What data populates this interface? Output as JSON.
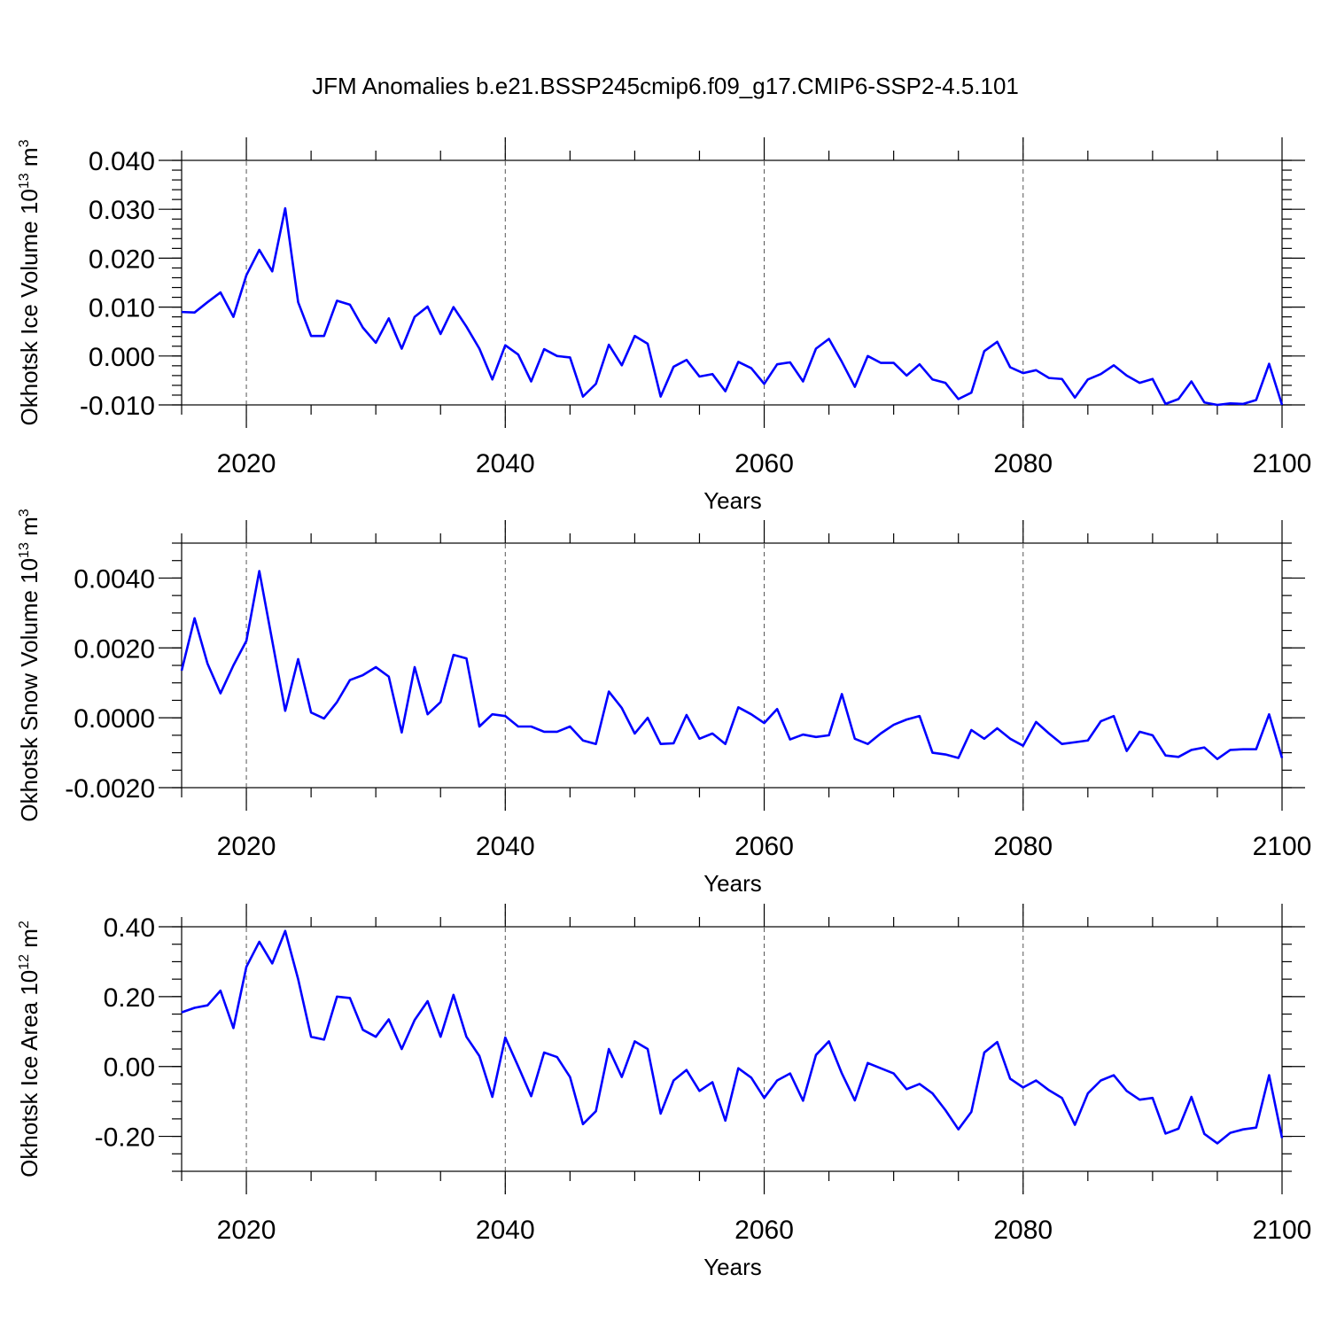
{
  "figure": {
    "title": "JFM Anomalies b.e21.BSSP245cmip6.f09_g17.CMIP6-SSP2-4.5.101"
  },
  "chart_data": [
    {
      "type": "line",
      "title": "",
      "xlabel": "Years",
      "ylabel": "Okhotsk Ice Volume 10",
      "ylabel_exp1": "13",
      "ylabel_unit": " m",
      "ylabel_exp2": "3",
      "xlim": [
        2015,
        2100
      ],
      "ylim": [
        -0.01,
        0.04
      ],
      "xticks": [
        2020,
        2040,
        2060,
        2080,
        2100
      ],
      "xtick_labels": [
        "2020",
        "2040",
        "2060",
        "2080",
        "2100"
      ],
      "yticks": [
        -0.01,
        0.0,
        0.01,
        0.02,
        0.03,
        0.04
      ],
      "ytick_labels": [
        "-0.010",
        "0.000",
        "0.010",
        "0.020",
        "0.030",
        "0.040"
      ],
      "yminor_step": 0.002,
      "grid_x": [
        2020,
        2040,
        2060,
        2080
      ],
      "series": [
        {
          "name": "Okhotsk Ice Volume",
          "color": "#0000ff",
          "x_start": 2015,
          "values": [
            0.009,
            0.0089,
            0.011,
            0.013,
            0.008,
            0.0165,
            0.0217,
            0.0173,
            0.0302,
            0.011,
            0.0041,
            0.0041,
            0.0113,
            0.0105,
            0.0058,
            0.0027,
            0.0077,
            0.0015,
            0.008,
            0.0101,
            0.0045,
            0.01,
            0.006,
            0.0015,
            -0.0048,
            0.0022,
            0.0003,
            -0.0052,
            0.0014,
            0.0,
            -0.0003,
            -0.0083,
            -0.0057,
            0.0023,
            -0.0019,
            0.0041,
            0.0025,
            -0.0083,
            -0.0022,
            -0.0008,
            -0.0042,
            -0.0037,
            -0.0072,
            -0.0012,
            -0.0025,
            -0.0057,
            -0.0017,
            -0.0013,
            -0.0052,
            0.0015,
            0.0035,
            -0.0012,
            -0.0063,
            0.0,
            -0.0014,
            -0.0014,
            -0.004,
            -0.0017,
            -0.0048,
            -0.0055,
            -0.0088,
            -0.0075,
            0.001,
            0.0029,
            -0.0023,
            -0.0035,
            -0.0029,
            -0.0045,
            -0.0047,
            -0.0085,
            -0.0048,
            -0.0037,
            -0.0019,
            -0.004,
            -0.0055,
            -0.0047,
            -0.0098,
            -0.0088,
            -0.0052,
            -0.0095,
            -0.01,
            -0.0097,
            -0.0098,
            -0.009,
            -0.0016,
            -0.01
          ]
        }
      ]
    },
    {
      "type": "line",
      "title": "",
      "xlabel": "Years",
      "ylabel": "Okhotsk Snow Volume 10",
      "ylabel_exp1": "13",
      "ylabel_unit": " m",
      "ylabel_exp2": "3",
      "xlim": [
        2015,
        2100
      ],
      "ylim": [
        -0.002,
        0.005
      ],
      "xticks": [
        2020,
        2040,
        2060,
        2080,
        2100
      ],
      "xtick_labels": [
        "2020",
        "2040",
        "2060",
        "2080",
        "2100"
      ],
      "yticks": [
        -0.002,
        0.0,
        0.002,
        0.004
      ],
      "ytick_labels": [
        "-0.0020",
        "0.0000",
        "0.0020",
        "0.0040"
      ],
      "yminor_step": 0.0005,
      "grid_x": [
        2020,
        2040,
        2060,
        2080
      ],
      "series": [
        {
          "name": "Okhotsk Snow Volume",
          "color": "#0000ff",
          "x_start": 2015,
          "values": [
            0.00135,
            0.00285,
            0.00155,
            0.0007,
            0.0015,
            0.0022,
            0.0042,
            0.0022,
            0.0002,
            0.00168,
            0.00015,
            -2e-05,
            0.00045,
            0.00108,
            0.00122,
            0.00145,
            0.00118,
            -0.00042,
            0.00145,
            0.0001,
            0.00045,
            0.0018,
            0.0017,
            -0.00025,
            0.0001,
            5e-05,
            -0.00025,
            -0.00025,
            -0.0004,
            -0.0004,
            -0.00025,
            -0.00065,
            -0.00075,
            0.00075,
            0.00028,
            -0.00045,
            0.0,
            -0.00075,
            -0.00073,
            8e-05,
            -0.0006,
            -0.00045,
            -0.00075,
            0.0003,
            0.0001,
            -0.00015,
            0.00025,
            -0.00062,
            -0.00048,
            -0.00055,
            -0.0005,
            0.00068,
            -0.0006,
            -0.00075,
            -0.00045,
            -0.0002,
            -5e-05,
            5e-05,
            -0.001,
            -0.00105,
            -0.00115,
            -0.00035,
            -0.0006,
            -0.0003,
            -0.0006,
            -0.0008,
            -0.00012,
            -0.00045,
            -0.00075,
            -0.0007,
            -0.00065,
            -0.0001,
            5e-05,
            -0.00095,
            -0.0004,
            -0.0005,
            -0.00108,
            -0.00112,
            -0.00092,
            -0.00085,
            -0.00118,
            -0.00092,
            -0.0009,
            -0.0009,
            0.0001,
            -0.00115
          ]
        }
      ]
    },
    {
      "type": "line",
      "title": "",
      "xlabel": "Years",
      "ylabel": "Okhotsk Ice Area 10",
      "ylabel_exp1": "12",
      "ylabel_unit": " m",
      "ylabel_exp2": "2",
      "xlim": [
        2015,
        2100
      ],
      "ylim": [
        -0.3,
        0.4
      ],
      "xticks": [
        2020,
        2040,
        2060,
        2080,
        2100
      ],
      "xtick_labels": [
        "2020",
        "2040",
        "2060",
        "2080",
        "2100"
      ],
      "yticks": [
        -0.2,
        0.0,
        0.2,
        0.4
      ],
      "ytick_labels": [
        "-0.20",
        "0.00",
        "0.20",
        "0.40"
      ],
      "yminor_step": 0.05,
      "grid_x": [
        2020,
        2040,
        2060,
        2080
      ],
      "series": [
        {
          "name": "Okhotsk Ice Area",
          "color": "#0000ff",
          "x_start": 2015,
          "values": [
            0.155,
            0.168,
            0.175,
            0.217,
            0.11,
            0.285,
            0.357,
            0.295,
            0.388,
            0.25,
            0.085,
            0.077,
            0.2,
            0.196,
            0.105,
            0.085,
            0.135,
            0.05,
            0.133,
            0.187,
            0.085,
            0.205,
            0.085,
            0.03,
            -0.087,
            0.083,
            0.0,
            -0.085,
            0.04,
            0.027,
            -0.03,
            -0.165,
            -0.128,
            0.05,
            -0.03,
            0.072,
            0.05,
            -0.135,
            -0.04,
            -0.01,
            -0.07,
            -0.045,
            -0.155,
            -0.005,
            -0.032,
            -0.09,
            -0.04,
            -0.02,
            -0.098,
            0.033,
            0.072,
            -0.02,
            -0.097,
            0.01,
            -0.005,
            -0.02,
            -0.065,
            -0.05,
            -0.077,
            -0.125,
            -0.18,
            -0.13,
            0.04,
            0.07,
            -0.035,
            -0.06,
            -0.04,
            -0.068,
            -0.09,
            -0.167,
            -0.077,
            -0.04,
            -0.025,
            -0.07,
            -0.095,
            -0.09,
            -0.192,
            -0.178,
            -0.087,
            -0.193,
            -0.22,
            -0.19,
            -0.18,
            -0.175,
            -0.025,
            -0.205
          ]
        }
      ]
    }
  ]
}
